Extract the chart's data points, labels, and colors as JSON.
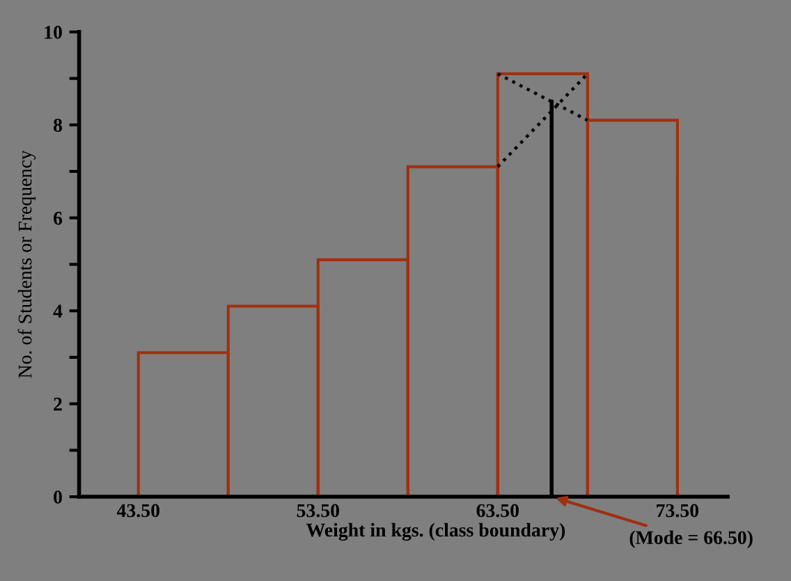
{
  "chart_data": {
    "type": "histogram",
    "xlabel": "Weight in kgs. (class boundary)",
    "ylabel": "No. of Students or Frequency",
    "bins": [
      43.5,
      48.5,
      53.5,
      58.5,
      63.5,
      68.5,
      73.5
    ],
    "values": [
      3.1,
      4.1,
      5.1,
      7.1,
      9.1,
      8.1
    ],
    "color": "#a0300f",
    "series": [
      {
        "type": "line",
        "x": [
          63.5,
          68.5
        ],
        "values": [
          9.1,
          8.1
        ],
        "color": "#000000",
        "line_style": "dotted"
      },
      {
        "type": "line",
        "x": [
          63.5,
          68.5
        ],
        "values": [
          7.1,
          9.1
        ],
        "color": "#000000",
        "line_style": "dotted"
      },
      {
        "type": "line",
        "x": [
          66.5,
          66.5
        ],
        "values": [
          0,
          8.5
        ],
        "color": "#000000",
        "line_style": "solid"
      }
    ],
    "annotations": [
      {
        "text": "(Mode = 66.50)",
        "x": 66.5,
        "y": 0
      }
    ],
    "xlim": [
      40.2,
      76.3
    ],
    "ylim": [
      0,
      10
    ],
    "xticks": [
      {
        "value": 43.5,
        "label": "43.50"
      },
      {
        "value": 53.5,
        "label": "53.50"
      },
      {
        "value": 63.5,
        "label": "63.50"
      },
      {
        "value": 73.5,
        "label": "73.50"
      }
    ],
    "yticks": [
      0,
      {
        "value": 1,
        "label": null
      },
      2,
      {
        "value": 3,
        "label": null
      },
      4,
      {
        "value": 5,
        "label": null
      },
      6,
      {
        "value": 7,
        "label": null
      },
      8,
      {
        "value": 9,
        "label": null
      },
      10
    ],
    "grid": false,
    "legend": false
  }
}
